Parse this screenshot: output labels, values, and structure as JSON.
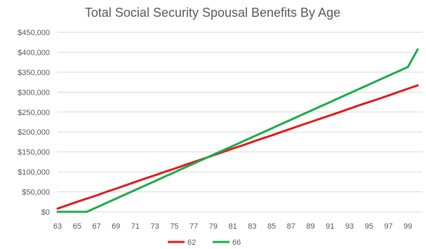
{
  "chart_data": {
    "type": "line",
    "title": "Total Social Security Spousal Benefits By Age",
    "xlabel": "",
    "ylabel": "",
    "x": [
      63,
      64,
      65,
      66,
      67,
      68,
      69,
      70,
      71,
      72,
      73,
      74,
      75,
      76,
      77,
      78,
      79,
      80,
      81,
      82,
      83,
      84,
      85,
      86,
      87,
      88,
      89,
      90,
      91,
      92,
      93,
      94,
      95,
      96,
      97,
      98,
      99,
      100
    ],
    "x_tick_labels": [
      "63",
      "65",
      "67",
      "69",
      "71",
      "73",
      "75",
      "77",
      "79",
      "81",
      "83",
      "85",
      "87",
      "89",
      "91",
      "93",
      "95",
      "97",
      "99"
    ],
    "y_tick_labels": [
      "$0",
      "$50,000",
      "$100,000",
      "$150,000",
      "$200,000",
      "$250,000",
      "$300,000",
      "$350,000",
      "$400,000",
      "$450,000"
    ],
    "ylim": [
      0,
      450000
    ],
    "grid": true,
    "legend_position": "bottom",
    "series": [
      {
        "name": "62",
        "color": "#e31a1c",
        "values": [
          8000,
          16500,
          25000,
          33000,
          41000,
          50000,
          58000,
          66500,
          75000,
          83500,
          91500,
          100000,
          108000,
          116500,
          125000,
          133000,
          141500,
          150000,
          158500,
          166500,
          175000,
          183500,
          191500,
          200000,
          208500,
          217000,
          225000,
          233500,
          241500,
          250000,
          258500,
          267000,
          275000,
          283000,
          291500,
          300000,
          308500,
          317000
        ]
      },
      {
        "name": "66",
        "color": "#1aab4b",
        "values": [
          0,
          0,
          0,
          0,
          11000,
          22000,
          33000,
          44000,
          55000,
          66000,
          77000,
          88000,
          99000,
          110000,
          121000,
          132000,
          143000,
          154000,
          165000,
          176000,
          187000,
          198000,
          209000,
          220000,
          231000,
          242000,
          253000,
          264000,
          275000,
          286000,
          297000,
          308000,
          319000,
          330000,
          341000,
          352000,
          363000,
          407000
        ]
      }
    ]
  }
}
